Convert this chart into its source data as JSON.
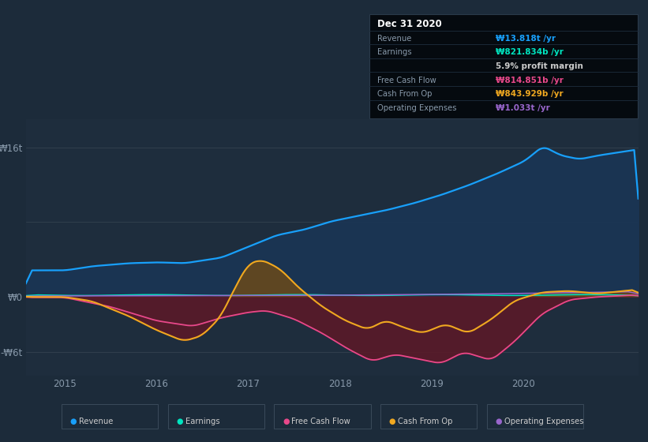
{
  "background_color": "#1c2b3a",
  "plot_bg_color": "#1e2d3d",
  "chart_bg_top": "#1a2738",
  "chart_bg_bot": "#1e2d3d",
  "x_labels": [
    "2015",
    "2016",
    "2017",
    "2018",
    "2019",
    "2020"
  ],
  "legend_items": [
    "Revenue",
    "Earnings",
    "Free Cash Flow",
    "Cash From Op",
    "Operating Expenses"
  ],
  "revenue_color": "#18a0fb",
  "earnings_color": "#00e5c0",
  "fcf_color": "#e8488a",
  "cashop_color": "#f0a820",
  "opex_color": "#9966cc",
  "revenue_fill": "#1a3555",
  "negative_fill": "#5a1a28",
  "cashop_fill_pos": "#6b4a1a",
  "tooltip_bg": "#050a0f",
  "x_min": 2014.58,
  "x_max": 2021.25,
  "y_min": -8.5,
  "y_max": 19.0,
  "ytick_positions": [
    -6,
    0,
    16
  ],
  "ytick_labels": [
    "-₩6t",
    "₩0",
    "₩16t"
  ]
}
